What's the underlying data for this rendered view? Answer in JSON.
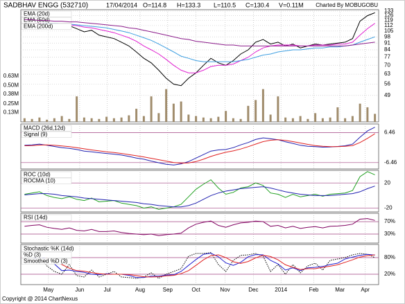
{
  "header": {
    "title": "SADBHAV ENGG (532710)",
    "date": "17/04/2014",
    "stats": [
      "O=114.8",
      "H=133.3",
      "L=110.5",
      "C=130.4",
      "V=0.11M"
    ],
    "source": "Charted By MOBUGOBU"
  },
  "footer": "Copyright @ 2014 ChartNexus",
  "chart_data": [
    {
      "type": "line",
      "log": true,
      "grid": true,
      "legend": "upper left",
      "xlim": [
        -0.5,
        47.5
      ],
      "ylim": [
        35.8,
        135.2
      ],
      "yticks": [
        133,
        126,
        119,
        112,
        105,
        98,
        91,
        84,
        77,
        70,
        63,
        56,
        49
      ],
      "color": "#000000",
      "values": [
        113,
        116,
        118,
        114,
        112,
        110,
        112,
        108,
        104,
        106,
        100,
        98,
        96,
        92,
        88,
        82,
        76,
        72,
        66,
        60,
        56,
        55,
        60,
        64,
        70,
        76,
        72,
        70,
        74,
        80,
        84,
        92,
        95,
        90,
        92,
        88,
        90,
        86,
        88,
        90,
        89,
        90,
        91,
        92,
        96,
        118,
        126,
        130.4
      ],
      "y2lim": [
        0,
        1.54
      ],
      "y2ticks": [
        {
          "value": 0.63,
          "label": "0.63M"
        },
        {
          "value": 0.5,
          "label": "0.50M"
        },
        {
          "value": 0.38,
          "label": "0.38M"
        },
        {
          "value": 0.25,
          "label": "0.25M"
        },
        {
          "value": 0.13,
          "label": "0.13M"
        }
      ],
      "volume": {
        "color": "#a08c6c",
        "values": [
          0.05,
          0.04,
          0.06,
          0.03,
          0.05,
          0.08,
          0.04,
          0.35,
          0.06,
          0.05,
          0.04,
          0.07,
          0.05,
          0.06,
          0.09,
          0.18,
          0.08,
          0.35,
          0.12,
          0.45,
          0.25,
          0.28,
          0.1,
          0.08,
          0.06,
          0.05,
          0.07,
          0.15,
          0.05,
          0.04,
          0.22,
          0.3,
          0.45,
          0.1,
          0.35,
          0.06,
          0.05,
          0.08,
          0.04,
          0.12,
          0.05,
          0.06,
          0.2,
          0.05,
          0.08,
          0.25,
          0.2,
          0.11
        ]
      },
      "series": [
        {
          "name": "EMA (20d)",
          "color": "#e020d0",
          "values": [
            114,
            114,
            115,
            115,
            114,
            113,
            113,
            112,
            110,
            109,
            107,
            105,
            103,
            100,
            97,
            93,
            88,
            84,
            80,
            75,
            70,
            66,
            64,
            64,
            66,
            69,
            70,
            70,
            71,
            74,
            77,
            82,
            86,
            88,
            89,
            89,
            89,
            88,
            88,
            89,
            89,
            89,
            90,
            90,
            92,
            100,
            108,
            115
          ]
        },
        {
          "name": "EMA (50d)",
          "color": "#3c9ee0",
          "values": [
            116,
            116,
            116,
            115,
            115,
            114,
            114,
            113,
            112,
            111,
            110,
            109,
            107,
            105,
            103,
            100,
            97,
            94,
            90,
            86,
            82,
            78,
            76,
            74,
            73,
            73,
            73,
            73,
            73,
            74,
            75,
            77,
            79,
            80,
            82,
            83,
            84,
            84,
            85,
            86,
            86,
            87,
            87,
            88,
            89,
            92,
            95,
            98
          ]
        },
        {
          "name": "EMA (200d)",
          "color": "#8a1a8a",
          "values": [
            120,
            120,
            119,
            119,
            118,
            118,
            117,
            117,
            116,
            115,
            114,
            113,
            112,
            111,
            109,
            108,
            106,
            104,
            102,
            100,
            98,
            96,
            95,
            93,
            92,
            91,
            90,
            89,
            89,
            88,
            88,
            88,
            88,
            88,
            88,
            88,
            88,
            88,
            88,
            88,
            88,
            88,
            88,
            88,
            89,
            90,
            91,
            92
          ]
        }
      ]
    },
    {
      "type": "line",
      "grid": true,
      "legend": "upper left",
      "xlim": [
        -0.5,
        47.5
      ],
      "ylim": [
        -9.2,
        10.2
      ],
      "yticks": [
        6.46,
        -6.46
      ],
      "series": [
        {
          "name": "MACD (26d,12d)",
          "color": "#2020b0",
          "values": [
            1,
            1.2,
            1.5,
            1,
            0.5,
            0,
            -0.3,
            -0.8,
            -1.5,
            -1.8,
            -2.2,
            -2.5,
            -2.8,
            -3.2,
            -3.8,
            -4.5,
            -5,
            -5.8,
            -6.5,
            -7.2,
            -7.5,
            -7,
            -6,
            -4.5,
            -3,
            -1.5,
            -1,
            -0.8,
            0,
            1.2,
            2.2,
            3.5,
            4.2,
            3.8,
            3.4,
            2.5,
            1.8,
            1,
            0.6,
            0.4,
            0.2,
            0.3,
            0.5,
            0.8,
            1.5,
            4.5,
            7.2,
            8.8
          ]
        },
        {
          "name": "Signal (9)",
          "color": "#e02020",
          "values": [
            0.8,
            0.9,
            1.1,
            1.2,
            1,
            0.7,
            0.4,
            0,
            -0.5,
            -1,
            -1.4,
            -1.8,
            -2.1,
            -2.5,
            -3,
            -3.5,
            -4,
            -4.6,
            -5.2,
            -5.8,
            -6.4,
            -6.7,
            -6.6,
            -6,
            -5,
            -3.8,
            -2.8,
            -2,
            -1.4,
            -0.6,
            0.4,
            1.5,
            2.6,
            3.2,
            3.4,
            3.1,
            2.6,
            2,
            1.4,
            0.9,
            0.6,
            0.4,
            0.4,
            0.6,
            0.9,
            2.2,
            4,
            6
          ]
        }
      ]
    },
    {
      "type": "line",
      "grid": true,
      "legend": "upper left",
      "xlim": [
        -0.5,
        47.5
      ],
      "ylim": [
        -26,
        40
      ],
      "yticks": [
        20,
        -20
      ],
      "series": [
        {
          "name": "ROC (10d)",
          "color": "#20a020",
          "values": [
            2,
            4,
            6,
            0,
            -3,
            -5,
            -2,
            -6,
            -8,
            -4,
            -10,
            -9,
            -8,
            -12,
            -14,
            -16,
            -20,
            -18,
            -22,
            -20,
            -18,
            -14,
            -2,
            10,
            18,
            25,
            12,
            2,
            5,
            12,
            14,
            20,
            16,
            4,
            2,
            -3,
            2,
            -2,
            0,
            2,
            -1,
            2,
            3,
            4,
            8,
            30,
            38,
            33
          ]
        },
        {
          "name": "ROCMA (10)",
          "color": "#2020b0",
          "values": [
            1,
            2,
            3,
            3,
            2,
            0,
            -1,
            -2,
            -4,
            -5,
            -6,
            -7,
            -8,
            -9,
            -10,
            -11,
            -13,
            -14,
            -16,
            -17,
            -18,
            -18,
            -16,
            -12,
            -6,
            0,
            4,
            7,
            9,
            11,
            12,
            13,
            14,
            12,
            9,
            6,
            4,
            2,
            1,
            0,
            0,
            0,
            1,
            2,
            3,
            6,
            11,
            15
          ]
        }
      ]
    },
    {
      "type": "line",
      "grid": true,
      "legend": "upper left",
      "xlim": [
        -0.5,
        47.5
      ],
      "ylim": [
        1,
        97
      ],
      "yticks": [
        {
          "value": 70,
          "label": "70%"
        },
        {
          "value": 30,
          "label": "30%"
        }
      ],
      "series": [
        {
          "name": "RSI (14d)",
          "color": "#800060",
          "values": [
            55,
            58,
            60,
            52,
            48,
            45,
            50,
            42,
            40,
            45,
            38,
            38,
            40,
            35,
            32,
            30,
            28,
            30,
            25,
            28,
            30,
            33,
            50,
            62,
            68,
            72,
            58,
            52,
            60,
            66,
            68,
            72,
            70,
            55,
            58,
            50,
            55,
            48,
            52,
            54,
            50,
            55,
            56,
            58,
            62,
            78,
            80,
            74
          ]
        }
      ]
    },
    {
      "type": "line",
      "grid": true,
      "legend": "upper left",
      "xlim": [
        -0.5,
        47.5
      ],
      "ylim": [
        -17.5,
        127.5
      ],
      "yticks": [
        {
          "value": 80,
          "label": "80%"
        },
        {
          "value": 20,
          "label": "20%"
        }
      ],
      "xticks": [
        {
          "value": 3.2,
          "label": "May"
        },
        {
          "value": 7.4,
          "label": "Jun"
        },
        {
          "value": 11.1,
          "label": "Jul"
        },
        {
          "value": 15.5,
          "label": "Aug"
        },
        {
          "value": 19.2,
          "label": "Sep"
        },
        {
          "value": 23.0,
          "label": "Oct"
        },
        {
          "value": 26.9,
          "label": "Nov"
        },
        {
          "value": 30.7,
          "label": "Dec"
        },
        {
          "value": 34.4,
          "label": "2014"
        },
        {
          "value": 38.8,
          "label": "Feb"
        },
        {
          "value": 42.3,
          "label": "Mar"
        },
        {
          "value": 45.7,
          "label": "Apr"
        }
      ],
      "series": [
        {
          "name": "Stochastic %K (14d)",
          "color": "#000000",
          "values": [
            70,
            85,
            90,
            50,
            30,
            20,
            55,
            15,
            10,
            35,
            10,
            20,
            30,
            10,
            8,
            5,
            10,
            25,
            5,
            20,
            30,
            40,
            85,
            95,
            95,
            98,
            55,
            30,
            70,
            88,
            90,
            95,
            85,
            30,
            55,
            20,
            55,
            25,
            50,
            60,
            35,
            70,
            75,
            80,
            90,
            95,
            92,
            80
          ]
        },
        {
          "name": "%D (3)",
          "color": "#2020d0",
          "values": [
            65,
            75,
            82,
            75,
            57,
            33,
            35,
            30,
            27,
            20,
            18,
            22,
            20,
            20,
            16,
            8,
            8,
            13,
            13,
            17,
            18,
            30,
            52,
            73,
            92,
            96,
            83,
            61,
            52,
            63,
            83,
            91,
            90,
            70,
            57,
            35,
            43,
            33,
            43,
            45,
            48,
            55,
            60,
            75,
            82,
            88,
            92,
            89
          ]
        },
        {
          "name": "Smoothed %D (3)",
          "color": "#e02020",
          "values": [
            60,
            68,
            74,
            77,
            71,
            55,
            42,
            33,
            31,
            26,
            22,
            20,
            20,
            20,
            19,
            15,
            11,
            10,
            11,
            14,
            16,
            22,
            33,
            52,
            72,
            87,
            90,
            80,
            65,
            59,
            66,
            79,
            88,
            84,
            72,
            54,
            45,
            37,
            40,
            40,
            45,
            49,
            54,
            63,
            72,
            82,
            87,
            90
          ]
        }
      ]
    }
  ]
}
